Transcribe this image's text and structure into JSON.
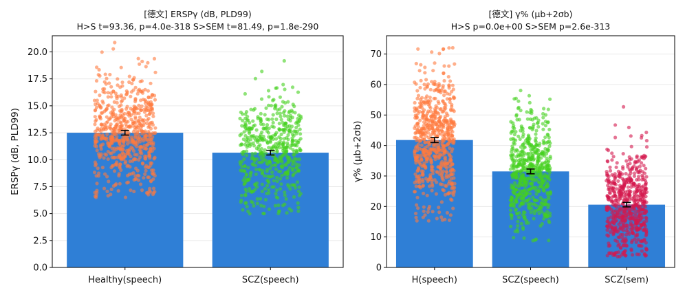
{
  "colors": {
    "bar": "#2f7fd6",
    "healthy": "#ff7a3d",
    "scz_speech": "#44d11e",
    "scz_sem": "#d3174c",
    "grid": "#e9e9e9"
  },
  "chart_data": [
    {
      "type": "bar",
      "title": "[德文] ERSPγ (dB, PLD99)",
      "subtitle": "H>S t=93.36, p=4.0e-318 S>SEM t=81.49, p=1.8e-290",
      "xlabel": "",
      "ylabel": "ERSPγ (dB, PLD99)",
      "ylim": [
        0,
        21.5
      ],
      "yticks": [
        0.0,
        2.5,
        5.0,
        7.5,
        10.0,
        12.5,
        15.0,
        17.5,
        20.0
      ],
      "ytick_labels": [
        "0.0",
        "2.5",
        "5.0",
        "7.5",
        "10.0",
        "12.5",
        "15.0",
        "17.5",
        "20.0"
      ],
      "grid": true,
      "categories": [
        "Healthy(speech)",
        "SCZ(speech)"
      ],
      "values": [
        12.5,
        10.65
      ],
      "errors": [
        0.12,
        0.12
      ],
      "scatter": [
        {
          "mean": 12.5,
          "sd": 2.6,
          "min": 6.4,
          "max": 21.0,
          "n": 650,
          "color": "healthy"
        },
        {
          "mean": 10.65,
          "sd": 2.7,
          "min": 4.6,
          "max": 19.5,
          "n": 520,
          "color": "scz_speech"
        }
      ]
    },
    {
      "type": "bar",
      "title": "[德文] γ% (μb+2σb)",
      "subtitle": "H>S p=0.0e+00  S>SEM p=2.6e-313",
      "xlabel": "",
      "ylabel": "γ% (μb+2σb)",
      "ylim": [
        0,
        76
      ],
      "yticks": [
        0,
        10,
        20,
        30,
        40,
        50,
        60,
        70
      ],
      "ytick_labels": [
        "0",
        "10",
        "20",
        "30",
        "40",
        "50",
        "60",
        "70"
      ],
      "grid": true,
      "categories": [
        "H(speech)",
        "SCZ(speech)",
        "SCZ(sem)"
      ],
      "values": [
        41.8,
        31.5,
        20.6
      ],
      "errors": [
        0.5,
        0.45,
        0.4
      ],
      "scatter": [
        {
          "mean": 41.8,
          "sd": 11.0,
          "min": 15.0,
          "max": 73.0,
          "n": 650,
          "color": "healthy"
        },
        {
          "mean": 31.5,
          "sd": 9.5,
          "min": 8.5,
          "max": 64.0,
          "n": 600,
          "color": "scz_speech"
        },
        {
          "mean": 20.6,
          "sd": 9.0,
          "min": 3.5,
          "max": 56.0,
          "n": 600,
          "color": "scz_sem"
        }
      ]
    }
  ]
}
